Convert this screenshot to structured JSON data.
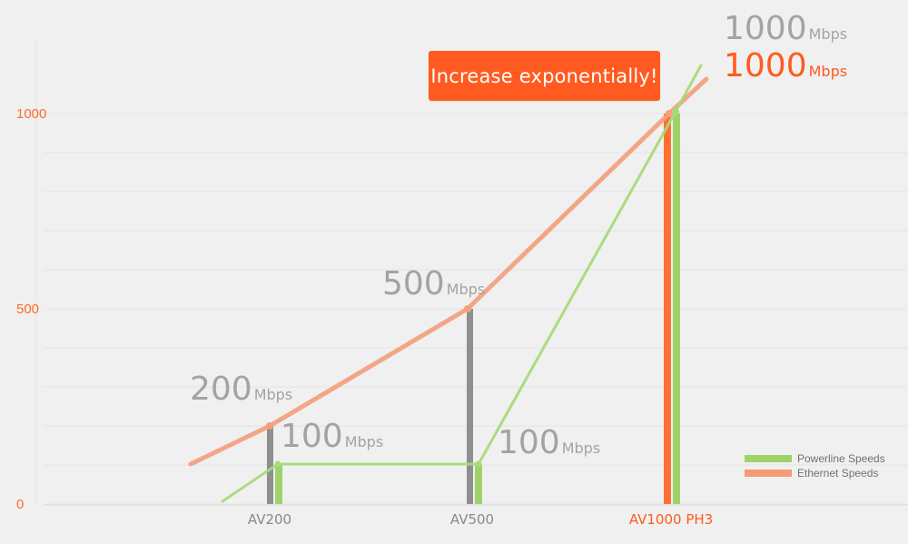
{
  "callout": {
    "text": "Increase exponentially!"
  },
  "chart_data": {
    "type": "line",
    "categories": [
      "AV200",
      "AV500",
      "AV1000 PH3"
    ],
    "ylim": [
      0,
      1000
    ],
    "y_ticks": [
      "0",
      "500",
      "1000"
    ],
    "grid": true,
    "legend_position": "bottom-right",
    "series": [
      {
        "name": "Powerline Speeds",
        "color": "#9fd26b",
        "values": [
          100,
          100,
          1000
        ]
      },
      {
        "name": "Ethernet Speeds",
        "color": "#f59a72",
        "values": [
          200,
          500,
          1000
        ]
      }
    ],
    "labels": {
      "ethernet_values": [
        "200",
        "500",
        "1000"
      ],
      "powerline_values": [
        "100",
        "100",
        "1000"
      ],
      "unit": "Mbps"
    }
  },
  "colors": {
    "background": "#f0f0f0",
    "grid": "#e3e3e3",
    "axis_label_orange": "#ff6a2a",
    "gray_bar": "#8f8f8f",
    "orange_bar": "#ff6f32",
    "green_bar": "#9fd26b",
    "green_line": "#a8d97a",
    "orange_line": "#f3a07e",
    "gray_text": "#a3a3a3",
    "orange_text": "#ff5a1f"
  }
}
